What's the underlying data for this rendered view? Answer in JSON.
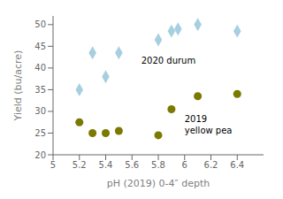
{
  "chart_data": {
    "type": "scatter",
    "xlabel": "pH (2019) 0-4″ depth",
    "ylabel": "Yield (bu/acre)",
    "xlim": [
      5.0,
      6.6
    ],
    "ylim": [
      20,
      52
    ],
    "xticks": [
      5,
      5.2,
      5.4,
      5.6,
      5.8,
      6,
      6.2,
      6.4
    ],
    "yticks": [
      20,
      25,
      30,
      35,
      40,
      45,
      50
    ],
    "series": [
      {
        "x": [
          5.2,
          5.3,
          5.4,
          5.5,
          5.8,
          5.9,
          5.95,
          6.1,
          6.4
        ],
        "values": [
          35,
          43.5,
          38,
          43.5,
          46.5,
          48.5,
          49,
          50,
          48.5
        ],
        "color": "#a8cfe0",
        "marker": "diamond"
      },
      {
        "x": [
          5.2,
          5.3,
          5.4,
          5.5,
          5.8,
          5.9,
          6.1,
          6.4
        ],
        "values": [
          27.5,
          25,
          25,
          25.5,
          24.5,
          30.5,
          33.5,
          34
        ],
        "color": "#7a7a00",
        "marker": "circle"
      }
    ],
    "annotations": [
      {
        "text": "2020 durum",
        "x": 5.67,
        "y": 41.0
      },
      {
        "text": "2019\nyellow pea",
        "x": 6.0,
        "y": 27.5
      }
    ]
  }
}
